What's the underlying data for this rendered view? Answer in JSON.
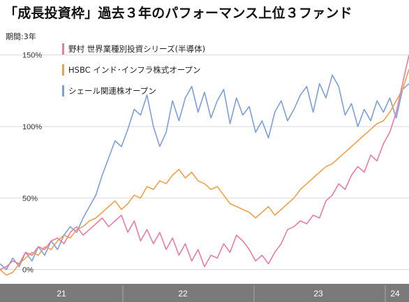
{
  "title": "「成長投資枠」過去３年のパフォーマンス上位３ファンド",
  "colors": {
    "nomura": "#e87ca3",
    "hsbc": "#f0a04a",
    "shale": "#7c9fd8",
    "axis_band": "#777777",
    "grid": "#d9d9d9"
  },
  "chart_data": {
    "type": "line",
    "period_label": "期間:3年",
    "x_ticks": [
      "21",
      "22",
      "23",
      "24"
    ],
    "y_ticks": [
      "0%",
      "50%",
      "100%",
      "150%"
    ],
    "ylim": [
      -10,
      165
    ],
    "xlim": [
      2021.0,
      2024.2
    ],
    "grid": "horizontal",
    "legend_position": "top-left",
    "series": [
      {
        "name": "野村 世界業種別投資シリーズ(半導体)",
        "color": "#e87ca3",
        "x": [
          2021.0,
          2021.05,
          2021.1,
          2021.15,
          2021.2,
          2021.25,
          2021.3,
          2021.35,
          2021.4,
          2021.45,
          2021.5,
          2021.55,
          2021.6,
          2021.65,
          2021.7,
          2021.75,
          2021.8,
          2021.85,
          2021.9,
          2021.95,
          2022.0,
          2022.05,
          2022.1,
          2022.15,
          2022.2,
          2022.25,
          2022.3,
          2022.35,
          2022.4,
          2022.45,
          2022.5,
          2022.55,
          2022.6,
          2022.65,
          2022.7,
          2022.75,
          2022.8,
          2022.85,
          2022.9,
          2022.95,
          2023.0,
          2023.05,
          2023.1,
          2023.15,
          2023.2,
          2023.25,
          2023.3,
          2023.35,
          2023.4,
          2023.45,
          2023.5,
          2023.55,
          2023.6,
          2023.65,
          2023.7,
          2023.75,
          2023.8,
          2023.85,
          2023.9,
          2023.95,
          2024.0,
          2024.05,
          2024.1,
          2024.15,
          2024.2
        ],
        "y": [
          0,
          2,
          6,
          4,
          12,
          10,
          16,
          14,
          20,
          22,
          18,
          26,
          30,
          24,
          28,
          32,
          36,
          30,
          34,
          38,
          26,
          34,
          20,
          28,
          18,
          26,
          14,
          22,
          10,
          18,
          6,
          14,
          2,
          10,
          8,
          18,
          12,
          24,
          20,
          14,
          6,
          10,
          4,
          12,
          18,
          28,
          30,
          34,
          32,
          38,
          36,
          48,
          52,
          60,
          56,
          66,
          72,
          68,
          80,
          76,
          88,
          96,
          110,
          130,
          150
        ]
      },
      {
        "name": "HSBC インド･インフラ株式オープン",
        "color": "#f0a04a",
        "x": [
          2021.0,
          2021.05,
          2021.1,
          2021.15,
          2021.2,
          2021.25,
          2021.3,
          2021.35,
          2021.4,
          2021.45,
          2021.5,
          2021.55,
          2021.6,
          2021.65,
          2021.7,
          2021.75,
          2021.8,
          2021.85,
          2021.9,
          2021.95,
          2022.0,
          2022.05,
          2022.1,
          2022.15,
          2022.2,
          2022.25,
          2022.3,
          2022.35,
          2022.4,
          2022.45,
          2022.5,
          2022.55,
          2022.6,
          2022.65,
          2022.7,
          2022.75,
          2022.8,
          2022.85,
          2022.9,
          2022.95,
          2023.0,
          2023.05,
          2023.1,
          2023.15,
          2023.2,
          2023.25,
          2023.3,
          2023.35,
          2023.4,
          2023.45,
          2023.5,
          2023.55,
          2023.6,
          2023.65,
          2023.7,
          2023.75,
          2023.8,
          2023.85,
          2023.9,
          2023.95,
          2024.0,
          2024.05,
          2024.1,
          2024.15,
          2024.2
        ],
        "y": [
          0,
          -4,
          -2,
          4,
          8,
          12,
          10,
          16,
          14,
          20,
          24,
          22,
          28,
          30,
          34,
          36,
          40,
          44,
          48,
          42,
          46,
          52,
          50,
          58,
          56,
          62,
          60,
          66,
          70,
          64,
          68,
          62,
          60,
          56,
          58,
          52,
          46,
          44,
          42,
          40,
          36,
          40,
          44,
          38,
          42,
          46,
          50,
          56,
          60,
          64,
          68,
          72,
          74,
          78,
          82,
          86,
          90,
          94,
          98,
          102,
          104,
          110,
          118,
          126,
          140
        ]
      },
      {
        "name": "シェール関連株オープン",
        "color": "#7c9fd8",
        "x": [
          2021.0,
          2021.05,
          2021.1,
          2021.15,
          2021.2,
          2021.25,
          2021.3,
          2021.35,
          2021.4,
          2021.45,
          2021.5,
          2021.55,
          2021.6,
          2021.65,
          2021.7,
          2021.75,
          2021.8,
          2021.85,
          2021.9,
          2021.95,
          2022.0,
          2022.05,
          2022.1,
          2022.15,
          2022.2,
          2022.25,
          2022.3,
          2022.35,
          2022.4,
          2022.45,
          2022.5,
          2022.55,
          2022.6,
          2022.65,
          2022.7,
          2022.75,
          2022.8,
          2022.85,
          2022.9,
          2022.95,
          2023.0,
          2023.05,
          2023.1,
          2023.15,
          2023.2,
          2023.25,
          2023.3,
          2023.35,
          2023.4,
          2023.45,
          2023.5,
          2023.55,
          2023.6,
          2023.65,
          2023.7,
          2023.75,
          2023.8,
          2023.85,
          2023.9,
          2023.95,
          2024.0,
          2024.05,
          2024.1,
          2024.15,
          2024.2
        ],
        "y": [
          4,
          0,
          8,
          2,
          12,
          6,
          16,
          10,
          20,
          14,
          24,
          30,
          26,
          36,
          44,
          52,
          66,
          78,
          90,
          86,
          98,
          112,
          108,
          122,
          100,
          86,
          96,
          118,
          104,
          120,
          128,
          110,
          124,
          106,
          118,
          126,
          102,
          120,
          108,
          114,
          96,
          104,
          92,
          110,
          118,
          104,
          112,
          122,
          128,
          110,
          130,
          120,
          136,
          128,
          108,
          116,
          100,
          112,
          104,
          118,
          110,
          120,
          106,
          126,
          130
        ]
      }
    ]
  }
}
